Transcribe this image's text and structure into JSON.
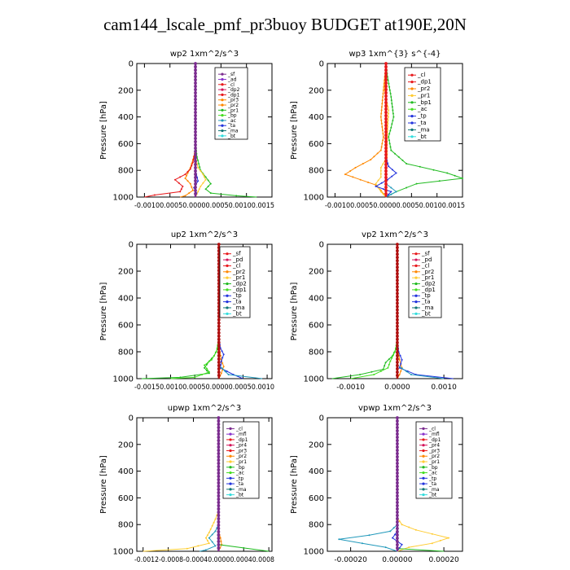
{
  "title": "cam144_lscale_pmf_pr3buoy  BUDGET at190E,20N",
  "colors": {
    "red": "#e8191c",
    "darkred": "#b01010",
    "purple": "#7b2c8f",
    "magenta": "#d4145a",
    "orange": "#ff8800",
    "yellow": "#ffcc33",
    "green": "#22bb22",
    "brightgreen": "#44dd22",
    "blue": "#2233dd",
    "teal": "#2299bb",
    "darkteal": "#117777",
    "cyan": "#33dddd",
    "violet": "#8833cc"
  },
  "chart_data": [
    {
      "type": "line",
      "title": "wp2  1xm^2/s^3",
      "ylabel": "Pressure [hPa]",
      "ylim": [
        1000,
        0
      ],
      "xlim": [
        -0.00115,
        0.0015
      ],
      "yticks": [
        0,
        200,
        400,
        600,
        800,
        1000
      ],
      "ytick_labels": [
        "0",
        "200",
        "400",
        "600",
        "800",
        "1000"
      ],
      "xticks": [
        -0.001,
        -0.0005,
        0.0,
        0.0005,
        0.001,
        0.0015
      ],
      "xtick_labels": [
        "-0.0010",
        "-0.0005",
        "0.0000",
        "0.0005",
        "0.0010",
        "0.0015"
      ],
      "xtick_text": "-0.00100.00050.00000.00050.00100.0015",
      "legend": [
        "_sf",
        "_ad",
        "_cl",
        "_dp2",
        "_dp1",
        "_pr3",
        "_pr2",
        "_pr1",
        "_bp",
        "_ac",
        "_ta",
        "_ma",
        "_bt"
      ],
      "legend_colors": [
        "purple",
        "violet",
        "red",
        "magenta",
        "red",
        "orange",
        "orange",
        "green",
        "brightgreen",
        "teal",
        "blue",
        "darkteal",
        "cyan"
      ],
      "legend_font": 6,
      "series": [
        {
          "color": "green",
          "p": [
            0,
            600,
            700,
            800,
            850,
            900,
            940,
            970,
            990,
            1000
          ],
          "x": [
            0,
            0,
            3e-05,
            0.0001,
            0.0002,
            0.0003,
            0.0002,
            0.0003,
            0.0008,
            0.0012
          ]
        },
        {
          "color": "orange",
          "p": [
            0,
            650,
            720,
            780,
            820,
            860,
            900,
            950,
            990,
            1000
          ],
          "x": [
            0,
            0,
            -5e-05,
            -0.0001,
            -0.00015,
            -0.0002,
            -0.0001,
            -5e-05,
            -0.0002,
            -0.0003
          ]
        },
        {
          "color": "yellow",
          "p": [
            0,
            700,
            780,
            830,
            870,
            920,
            960,
            1000
          ],
          "x": [
            0,
            0,
            5e-05,
            0.00015,
            0.0002,
            0.0001,
            5e-05,
            0
          ]
        },
        {
          "color": "red",
          "p": [
            0,
            650,
            740,
            790,
            830,
            870,
            920,
            960,
            985,
            1000
          ],
          "x": [
            0,
            0,
            -5e-05,
            -0.0001,
            -0.0002,
            -0.0004,
            -0.00025,
            -0.0003,
            -0.0008,
            -0.001
          ]
        },
        {
          "color": "blue",
          "p": [
            0,
            800,
            880,
            930,
            970,
            1000
          ],
          "x": [
            0,
            0,
            5e-05,
            -3e-05,
            2e-05,
            0
          ]
        },
        {
          "color": "purple",
          "p": [
            0,
            1000
          ],
          "x": [
            0,
            0
          ],
          "width": 2.4
        }
      ]
    },
    {
      "type": "line",
      "title": "wp3  1xm^{3} s^{-4}",
      "ylabel": "Pressure [hPa]",
      "ylim": [
        1000,
        0
      ],
      "xlim": [
        -0.00115,
        0.0015
      ],
      "yticks": [
        0,
        200,
        400,
        600,
        800,
        1000
      ],
      "ytick_labels": [
        "0",
        "200",
        "400",
        "600",
        "800",
        "1000"
      ],
      "xticks": [
        -0.001,
        -0.0005,
        0.0,
        0.0005,
        0.001,
        0.0015
      ],
      "xtick_labels": [
        "-0.0010",
        "-0.0005",
        "0.0000",
        "0.0005",
        "0.0010",
        "0.0015"
      ],
      "xtick_text": "-0.00100.00050.00000.00050.00100.0015",
      "legend": [
        "_cl",
        "_dp1",
        "_pr2",
        "_pr1",
        "_bp1",
        "_ac",
        "_tp",
        "_ta",
        "_ma",
        "_bt"
      ],
      "legend_colors": [
        "red",
        "red",
        "orange",
        "yellow",
        "green",
        "brightgreen",
        "blue",
        "blue",
        "darkteal",
        "cyan"
      ],
      "legend_font": 7,
      "series": [
        {
          "color": "green",
          "p": [
            0,
            100,
            250,
            400,
            480,
            550,
            650,
            750,
            820,
            860,
            900,
            960,
            1000
          ],
          "x": [
            0,
            3e-05,
            0.0001,
            0.00015,
            0.0001,
            5e-05,
            0.0001,
            0.0004,
            0.0012,
            0.0015,
            0.0006,
            0.0002,
            0
          ]
        },
        {
          "color": "orange",
          "p": [
            0,
            200,
            400,
            550,
            650,
            720,
            780,
            830,
            870,
            910,
            950,
            1000
          ],
          "x": [
            0,
            -5e-05,
            -0.0001,
            -5e-05,
            -0.0001,
            -0.0003,
            -0.0006,
            -0.0008,
            -0.0005,
            -0.0002,
            -0.0001,
            0
          ]
        },
        {
          "color": "yellow",
          "p": [
            0,
            200,
            350,
            500,
            600,
            700,
            780,
            850,
            900,
            960,
            1000
          ],
          "x": [
            0,
            -3e-05,
            5e-05,
            3e-05,
            2e-05,
            2e-05,
            -0.0001,
            -0.0001,
            -0.0002,
            -0.0001,
            0
          ]
        },
        {
          "color": "blue",
          "p": [
            0,
            700,
            770,
            820,
            870,
            920,
            960,
            1000
          ],
          "x": [
            0,
            0,
            5e-05,
            0.0002,
            3e-05,
            -0.0002,
            0.0001,
            0
          ]
        },
        {
          "color": "teal",
          "p": [
            0,
            900,
            960,
            1000
          ],
          "x": [
            0,
            0,
            0.0002,
            0
          ]
        },
        {
          "color": "red",
          "p": [
            0,
            1000
          ],
          "x": [
            0,
            0
          ],
          "width": 2.4
        }
      ]
    },
    {
      "type": "line",
      "title": "up2  1xm^2/s^3",
      "ylabel": "Pressure [hPa]",
      "ylim": [
        1000,
        0
      ],
      "xlim": [
        -0.0017,
        0.0011
      ],
      "yticks": [
        0,
        200,
        400,
        600,
        800,
        1000
      ],
      "ytick_labels": [
        "0",
        "200",
        "400",
        "600",
        "800",
        "1000"
      ],
      "xticks": [
        -0.0015,
        -0.001,
        -0.0005,
        0.0,
        0.0005,
        0.001
      ],
      "xtick_labels": [
        "-0.0015",
        "-0.0010",
        "-0.0005",
        "0.0000",
        "0.0005",
        "0.0010"
      ],
      "xtick_text": "-0.00150.00100.00050.00000.00050.0010",
      "legend": [
        "_sf",
        "_pd",
        "_cl",
        "_pr2",
        "_pr1",
        "_dp2",
        "_dp1",
        "_tp",
        "_ta",
        "_ma",
        "_bt"
      ],
      "legend_colors": [
        "red",
        "magenta",
        "red",
        "orange",
        "yellow",
        "green",
        "brightgreen",
        "blue",
        "blue",
        "darkteal",
        "cyan"
      ],
      "legend_font": 7,
      "series": [
        {
          "color": "green",
          "p": [
            0,
            700,
            780,
            830,
            870,
            920,
            960,
            990,
            1000
          ],
          "x": [
            0,
            0,
            -3e-05,
            -0.0001,
            -0.0002,
            -0.0003,
            -0.0002,
            -0.0008,
            -0.0016
          ]
        },
        {
          "color": "brightgreen",
          "p": [
            0,
            700,
            800,
            860,
            900,
            950,
            990,
            1000
          ],
          "x": [
            0,
            0,
            -5e-05,
            -0.00015,
            -0.0003,
            -0.0002,
            -0.0005,
            -0.001
          ]
        },
        {
          "color": "orange",
          "p": [
            0,
            720,
            800,
            860,
            910,
            960,
            1000
          ],
          "x": [
            0,
            0,
            2e-05,
            5e-05,
            0.0001,
            5e-05,
            0
          ]
        },
        {
          "color": "blue",
          "p": [
            0,
            700,
            770,
            820,
            870,
            920,
            970,
            1000
          ],
          "x": [
            0,
            0,
            3e-05,
            0.0001,
            5e-05,
            3e-05,
            0.0003,
            0.0005
          ]
        },
        {
          "color": "teal",
          "p": [
            0,
            900,
            970,
            1000
          ],
          "x": [
            0,
            0,
            0.0002,
            0.0009
          ]
        },
        {
          "color": "darkred",
          "p": [
            0,
            1000
          ],
          "x": [
            0,
            0
          ],
          "width": 2.4
        }
      ]
    },
    {
      "type": "line",
      "title": "vp2  1xm^2/s^3",
      "ylabel": "Pressure [hPa]",
      "ylim": [
        1000,
        0
      ],
      "xlim": [
        -0.0015,
        0.0014
      ],
      "yticks": [
        0,
        200,
        400,
        600,
        800,
        1000
      ],
      "ytick_labels": [
        "0",
        "200",
        "400",
        "600",
        "800",
        "1000"
      ],
      "xticks": [
        -0.001,
        0.0,
        0.001
      ],
      "xtick_labels": [
        "-0.0010",
        "0.0000",
        "0.0010"
      ],
      "xtick_text": "",
      "legend": [
        "_sf",
        "_pd",
        "_cl",
        "_pr2",
        "_pr1",
        "_dp2",
        "_dp1",
        "_tp",
        "_ta",
        "_ma",
        "_bt"
      ],
      "legend_colors": [
        "red",
        "magenta",
        "red",
        "orange",
        "yellow",
        "green",
        "brightgreen",
        "blue",
        "blue",
        "darkteal",
        "cyan"
      ],
      "legend_font": 7,
      "series": [
        {
          "color": "green",
          "p": [
            0,
            700,
            780,
            830,
            880,
            930,
            970,
            1000
          ],
          "x": [
            0,
            0,
            -3e-05,
            -0.0001,
            -0.00025,
            -0.0003,
            -0.0008,
            -0.0014
          ]
        },
        {
          "color": "brightgreen",
          "p": [
            0,
            720,
            800,
            870,
            920,
            970,
            1000
          ],
          "x": [
            0,
            0,
            -5e-05,
            -0.00015,
            -0.0002,
            -0.0005,
            -0.001
          ]
        },
        {
          "color": "orange",
          "p": [
            0,
            720,
            800,
            860,
            920,
            970,
            1000
          ],
          "x": [
            0,
            0,
            2e-05,
            5e-05,
            0.0001,
            5e-05,
            0
          ]
        },
        {
          "color": "blue",
          "p": [
            0,
            720,
            800,
            860,
            920,
            970,
            1000
          ],
          "x": [
            0,
            0,
            3e-05,
            0.0001,
            5e-05,
            0.0004,
            0.0012
          ]
        },
        {
          "color": "teal",
          "p": [
            0,
            900,
            970,
            1000
          ],
          "x": [
            0,
            0,
            0.0003,
            0.001
          ]
        },
        {
          "color": "darkred",
          "p": [
            0,
            1000
          ],
          "x": [
            0,
            0
          ],
          "width": 2.4
        }
      ]
    },
    {
      "type": "line",
      "title": "upwp  1xm^2/s^3",
      "ylabel": "Pressure [hPa]",
      "ylim": [
        1000,
        0
      ],
      "xlim": [
        -0.0013,
        0.00085
      ],
      "yticks": [
        0,
        200,
        400,
        600,
        800,
        1000
      ],
      "ytick_labels": [
        "0",
        "200",
        "400",
        "600",
        "800",
        "1000"
      ],
      "xticks": [
        -0.0012,
        -0.0008,
        -0.0004,
        0.0,
        0.0004,
        0.0008
      ],
      "xtick_labels": [
        "-0.0012",
        "-0.0008",
        "-0.0004",
        "0.0000",
        "0.0004",
        "0.0008"
      ],
      "xtick_text": "-0.0012-0.0008-0.00040.00000.00040.0008",
      "legend": [
        "_cl",
        "_mfl",
        "_dp1",
        "_pr4",
        "_pr3",
        "_pr2",
        "_pr1",
        "_bp",
        "_ac",
        "_tp",
        "_ta",
        "_ma",
        "_bt"
      ],
      "legend_colors": [
        "purple",
        "violet",
        "red",
        "magenta",
        "red",
        "orange",
        "yellow",
        "green",
        "brightgreen",
        "blue",
        "blue",
        "darkteal",
        "cyan"
      ],
      "legend_font": 6,
      "series": [
        {
          "color": "yellow",
          "p": [
            0,
            700,
            760,
            810,
            860,
            900,
            940,
            980,
            1000
          ],
          "x": [
            0,
            0,
            -5e-05,
            -0.0001,
            -0.00015,
            -0.0002,
            -0.00015,
            -0.0005,
            -0.0012
          ]
        },
        {
          "color": "teal",
          "p": [
            0,
            800,
            850,
            900,
            930,
            960,
            990,
            1000
          ],
          "x": [
            0,
            0,
            -5e-05,
            -0.00015,
            -0.0001,
            -5e-05,
            -0.0002,
            -0.0003
          ]
        },
        {
          "color": "orange",
          "p": [
            0,
            850,
            900,
            950,
            1000
          ],
          "x": [
            0,
            0,
            3e-05,
            5e-05,
            0
          ]
        },
        {
          "color": "green",
          "p": [
            0,
            950,
            1000
          ],
          "x": [
            0,
            0,
            0.0008
          ]
        },
        {
          "color": "purple",
          "p": [
            0,
            1000
          ],
          "x": [
            0,
            0
          ],
          "width": 2.4
        }
      ]
    },
    {
      "type": "line",
      "title": "vpwp  1xm^2/s^3",
      "ylabel": "Pressure [hPa]",
      "ylim": [
        1000,
        0
      ],
      "xlim": [
        -0.0003,
        0.00028
      ],
      "yticks": [
        0,
        200,
        400,
        600,
        800,
        1000
      ],
      "ytick_labels": [
        "0",
        "200",
        "400",
        "600",
        "800",
        "1000"
      ],
      "xticks": [
        -0.0002,
        0.0,
        0.0002
      ],
      "xtick_labels": [
        "-0.00020",
        "0.00000",
        "0.00020"
      ],
      "xtick_text": "",
      "legend": [
        "_cl",
        "_mfl",
        "_dp1",
        "_pr4",
        "_pr3",
        "_pr2",
        "_pr1",
        "_bp",
        "_ac",
        "_tp",
        "_ta",
        "_ma",
        "_bt"
      ],
      "legend_colors": [
        "purple",
        "violet",
        "red",
        "magenta",
        "red",
        "orange",
        "yellow",
        "green",
        "brightgreen",
        "blue",
        "blue",
        "darkteal",
        "cyan"
      ],
      "legend_font": 6,
      "series": [
        {
          "color": "yellow",
          "p": [
            0,
            750,
            800,
            840,
            870,
            900,
            940,
            970,
            1000
          ],
          "x": [
            0,
            0,
            2e-05,
            8e-05,
            0.00015,
            0.00022,
            0.00015,
            5e-05,
            0
          ]
        },
        {
          "color": "teal",
          "p": [
            0,
            800,
            850,
            880,
            910,
            940,
            970,
            1000
          ],
          "x": [
            0,
            0,
            -3e-05,
            -0.00012,
            -0.00025,
            -0.00015,
            -5e-05,
            0
          ]
        },
        {
          "color": "blue",
          "p": [
            0,
            850,
            900,
            950,
            1000
          ],
          "x": [
            0,
            0,
            -2e-05,
            2e-05,
            0
          ]
        },
        {
          "color": "green",
          "p": [
            0,
            980,
            1000
          ],
          "x": [
            0,
            0,
            0.0002
          ]
        },
        {
          "color": "purple",
          "p": [
            0,
            1000
          ],
          "x": [
            0,
            0
          ],
          "width": 2.4
        }
      ]
    }
  ]
}
